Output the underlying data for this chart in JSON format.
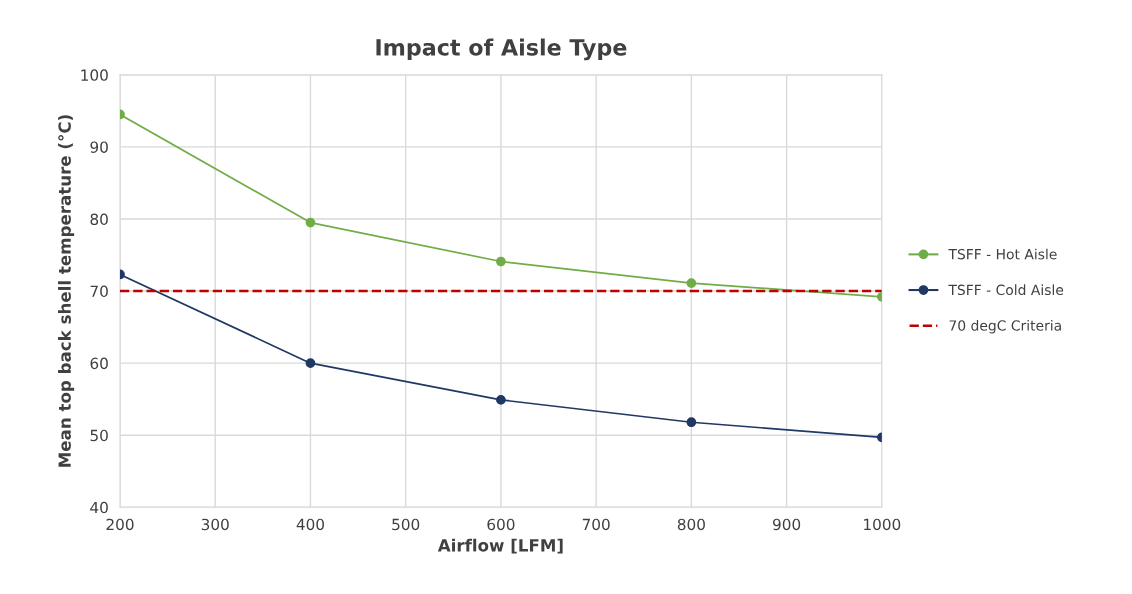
{
  "chart_data": {
    "type": "line",
    "title": "Impact of Aisle Type",
    "xlabel": "Airflow [LFM]",
    "ylabel": "Mean top back shell temperature (°C)",
    "x": [
      200,
      400,
      600,
      800,
      1000
    ],
    "series": [
      {
        "name": "TSFF - Hot Aisle",
        "color": "#70ad47",
        "values": [
          94.5,
          79.5,
          74.1,
          71.1,
          69.2
        ]
      },
      {
        "name": "TSFF - Cold Aisle",
        "color": "#203864",
        "values": [
          72.3,
          60.0,
          54.9,
          51.8,
          49.7
        ]
      }
    ],
    "ref_lines": [
      {
        "axis": "y",
        "value": 70,
        "label": "70 degC Criteria",
        "color": "#c00000",
        "line_style": "dashed"
      }
    ],
    "xlim": [
      200,
      1000
    ],
    "xticks": [
      200,
      300,
      400,
      500,
      600,
      700,
      800,
      900,
      1000
    ],
    "ylim": [
      40,
      100
    ],
    "yticks": [
      40,
      50,
      60,
      70,
      80,
      90,
      100
    ],
    "grid": true,
    "legend": "right",
    "marker": "circle",
    "line_style": "solid"
  }
}
